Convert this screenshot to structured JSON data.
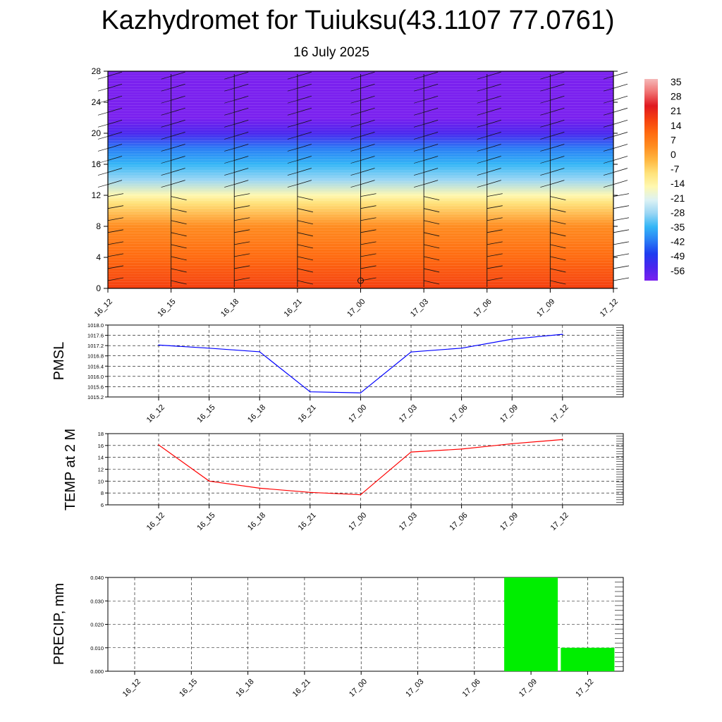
{
  "header": {
    "title": "Kazhydromet for Tuiuksu(43.1107 77.0761)",
    "subtitle": "16 July 2025"
  },
  "colors": {
    "pmsl_line": "#0000ff",
    "temp_line": "#ff0000",
    "precip_bar": "#00ee00",
    "colorbar": [
      "#7a20ef",
      "#4a26ee",
      "#1e3cf0",
      "#2a7ef5",
      "#34b6f6",
      "#9ad6f4",
      "#dcf2f4",
      "#fff8b0",
      "#ffe27a",
      "#ffb640",
      "#ff8c20",
      "#ff6a10",
      "#f54010",
      "#e01820",
      "#f07070",
      "#f5b8b8"
    ]
  },
  "chart_data": [
    {
      "type": "heatmap",
      "title": "",
      "xlabel": "",
      "ylabel": "",
      "x": [
        "16_12",
        "16_15",
        "16_18",
        "16_21",
        "17_00",
        "17_03",
        "17_06",
        "17_09",
        "17_12"
      ],
      "y_ticks": [
        0,
        4,
        8,
        12,
        16,
        20,
        24,
        28
      ],
      "ylim": [
        0,
        28
      ],
      "colorbar_labels": [
        "35",
        "28",
        "21",
        "14",
        "7",
        "0",
        "-7",
        "-14",
        "-21",
        "-28",
        "-35",
        "-42",
        "-49",
        "-56"
      ],
      "value_profile_by_height": [
        {
          "y": 0,
          "value": 21
        },
        {
          "y": 4,
          "value": 14
        },
        {
          "y": 8,
          "value": 5
        },
        {
          "y": 11,
          "value": -6
        },
        {
          "y": 12,
          "value": -16
        },
        {
          "y": 14,
          "value": -25
        },
        {
          "y": 16,
          "value": -32
        },
        {
          "y": 18,
          "value": -42
        },
        {
          "y": 20,
          "value": -52
        },
        {
          "y": 22,
          "value": -58
        },
        {
          "y": 28,
          "value": -60
        }
      ],
      "overlay": "wind barbs at each time step"
    },
    {
      "type": "line",
      "ylabel": "PMSL",
      "x": [
        "16_12",
        "16_15",
        "16_18",
        "16_21",
        "17_00",
        "17_03",
        "17_06",
        "17_09",
        "17_12"
      ],
      "ylim": [
        1015.2,
        1018.0
      ],
      "y_ticks": [
        "1015.2",
        "1015.6",
        "1016.0",
        "1016.4",
        "1016.8",
        "1017.2",
        "1017.6",
        "1018.0"
      ],
      "series": [
        {
          "values": [
            1017.22,
            1017.1,
            1016.96,
            1015.4,
            1015.36,
            1016.95,
            1017.1,
            1017.45,
            1017.64
          ]
        }
      ],
      "grid": true
    },
    {
      "type": "line",
      "ylabel": "TEMP at 2 M",
      "x": [
        "16_12",
        "16_15",
        "16_18",
        "16_21",
        "17_00",
        "17_03",
        "17_06",
        "17_09",
        "17_12"
      ],
      "ylim": [
        6,
        18
      ],
      "y_ticks": [
        "6",
        "8",
        "10",
        "12",
        "14",
        "16",
        "18"
      ],
      "series": [
        {
          "values": [
            16.1,
            10.0,
            8.8,
            8.1,
            7.7,
            14.9,
            15.4,
            16.3,
            17.0
          ]
        }
      ],
      "grid": true
    },
    {
      "type": "bar",
      "ylabel": "PRECIP, mm",
      "categories": [
        "16_12",
        "16_15",
        "16_18",
        "16_21",
        "17_00",
        "17_03",
        "17_06",
        "17_09",
        "17_12"
      ],
      "values": [
        0,
        0,
        0,
        0,
        0,
        0,
        0,
        0.04,
        0.01
      ],
      "ylim": [
        0,
        0.04
      ],
      "y_ticks": [
        "0.000",
        "0.010",
        "0.020",
        "0.030",
        "0.040"
      ],
      "grid": true
    }
  ]
}
